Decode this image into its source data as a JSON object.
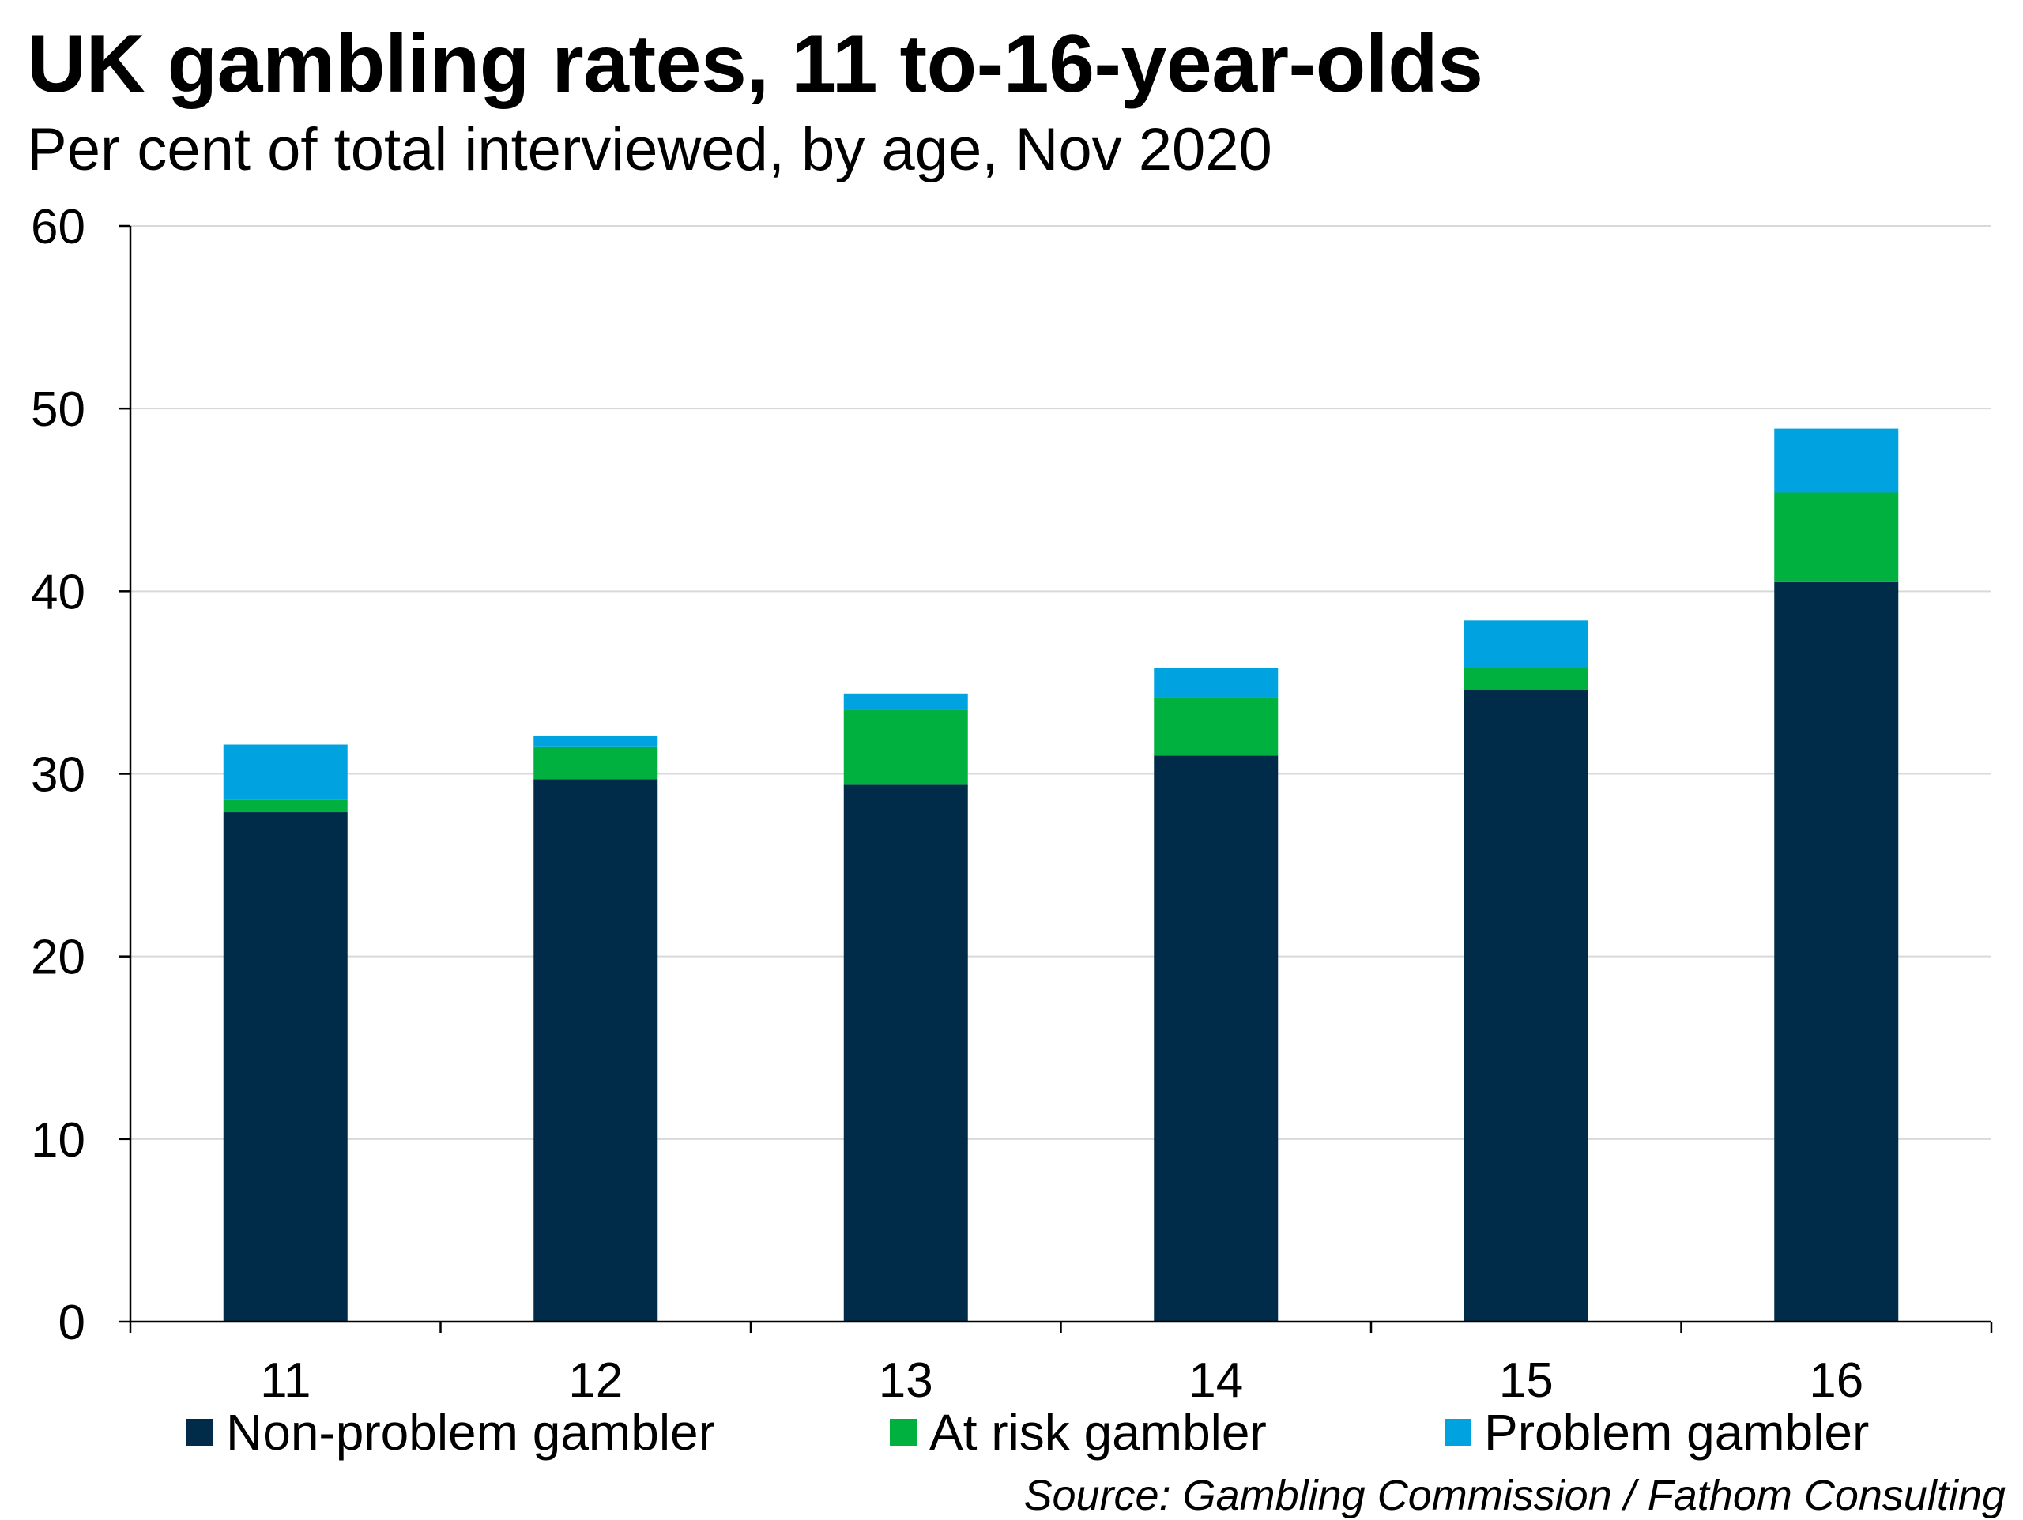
{
  "chart_data": {
    "type": "bar",
    "stacked": true,
    "title": "UK gambling rates, 11 to-16-year-olds",
    "subtitle": "Per cent of total interviewed, by age, Nov 2020",
    "source": "Source: Gambling Commission / Fathom Consulting",
    "categories": [
      "11",
      "12",
      "13",
      "14",
      "15",
      "16"
    ],
    "series": [
      {
        "name": "Non-problem gambler",
        "color": "#002B49",
        "values": [
          27.9,
          29.7,
          29.4,
          31.0,
          34.6,
          40.5
        ]
      },
      {
        "name": "At risk gambler",
        "color": "#00B140",
        "values": [
          0.7,
          1.8,
          4.1,
          3.2,
          1.2,
          4.9
        ]
      },
      {
        "name": "Problem gambler",
        "color": "#00A3E0",
        "values": [
          3.0,
          0.6,
          0.9,
          1.6,
          2.6,
          3.5
        ]
      }
    ],
    "ylim": [
      0,
      60
    ],
    "yticks": [
      0,
      10,
      20,
      30,
      40,
      50,
      60
    ],
    "grid": true,
    "legend": "bottom"
  }
}
